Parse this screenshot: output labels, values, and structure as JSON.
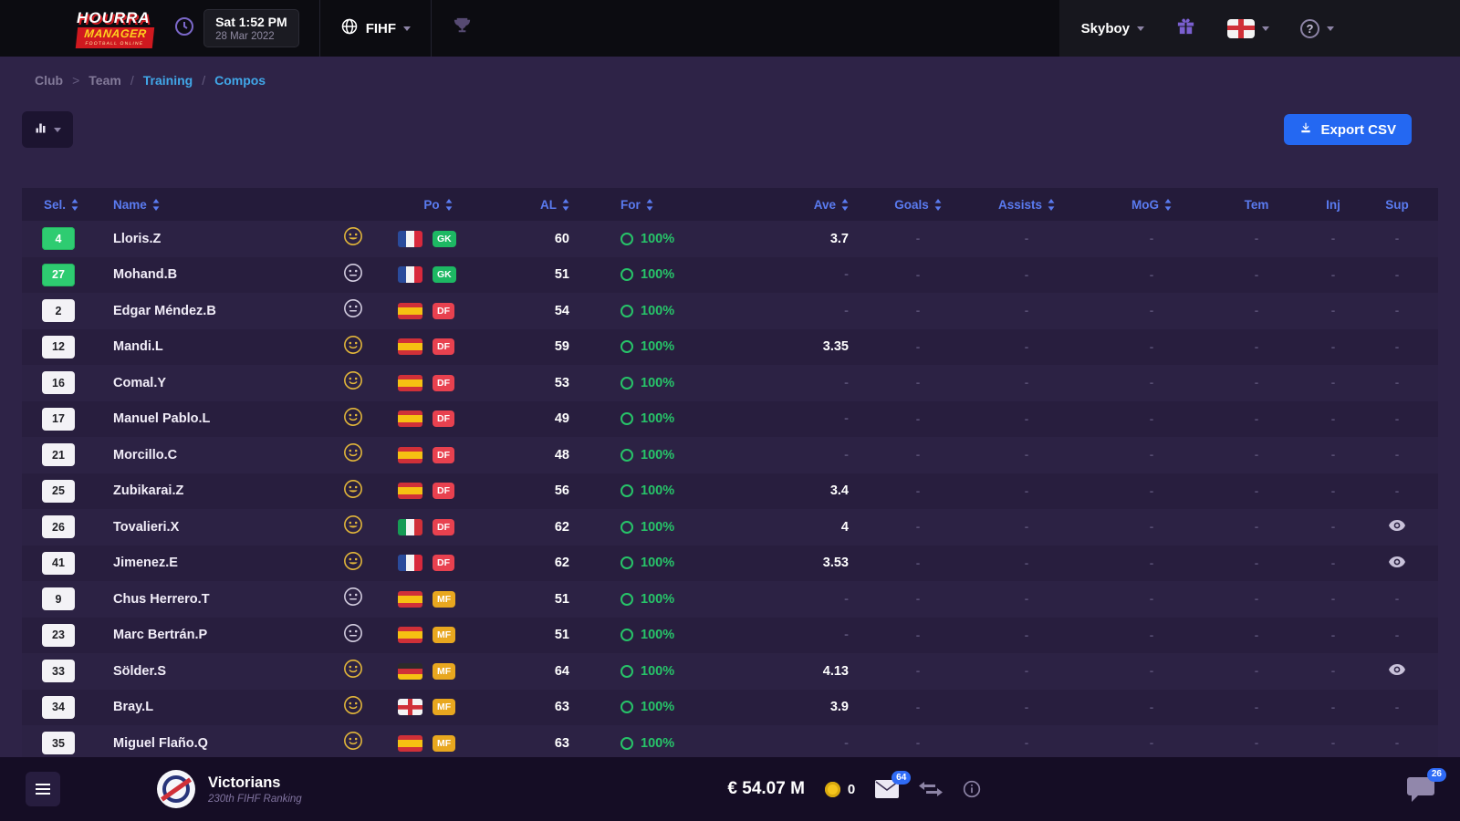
{
  "navbar": {
    "logo": {
      "line1": "HOURRA",
      "line2": "MANAGER",
      "sub": "FOOTBALL ONLINE"
    },
    "clock": {
      "time": "Sat 1:52 PM",
      "date": "28 Mar 2022"
    },
    "federation": "FIHF",
    "user": "Skyboy"
  },
  "breadcrumb": {
    "items": [
      {
        "label": "Club",
        "active": false,
        "sep": ">"
      },
      {
        "label": "Team",
        "active": false,
        "sep": "/"
      },
      {
        "label": "Training",
        "active": true,
        "sep": "/"
      },
      {
        "label": "Compos",
        "active": true,
        "sep": ""
      }
    ]
  },
  "toolbar": {
    "export_label": "Export CSV"
  },
  "table": {
    "headers": [
      {
        "key": "sel",
        "label": "Sel.",
        "sortable": true
      },
      {
        "key": "name",
        "label": "Name",
        "sortable": true
      },
      {
        "key": "morale",
        "label": "",
        "sortable": false
      },
      {
        "key": "po",
        "label": "Po",
        "sortable": true
      },
      {
        "key": "al",
        "label": "AL",
        "sortable": true
      },
      {
        "key": "for",
        "label": "For",
        "sortable": true
      },
      {
        "key": "ave",
        "label": "Ave",
        "sortable": true
      },
      {
        "key": "goals",
        "label": "Goals",
        "sortable": true
      },
      {
        "key": "assists",
        "label": "Assists",
        "sortable": true
      },
      {
        "key": "mog",
        "label": "MoG",
        "sortable": true
      },
      {
        "key": "tem",
        "label": "Tem",
        "sortable": false
      },
      {
        "key": "inj",
        "label": "Inj",
        "sortable": false
      },
      {
        "key": "sup",
        "label": "Sup",
        "sortable": false
      }
    ],
    "rows": [
      {
        "sel": "4",
        "selected": true,
        "name": "Lloris.Z",
        "morale": "grin",
        "country": "fr",
        "pos": "GK",
        "al": "60",
        "form": "100%",
        "ave": "3.7",
        "goals": "-",
        "assists": "-",
        "mog": "-",
        "tem": "-",
        "inj": "-",
        "sup": "-",
        "watched": false
      },
      {
        "sel": "27",
        "selected": true,
        "name": "Mohand.B",
        "morale": "neutral",
        "country": "fr",
        "pos": "GK",
        "al": "51",
        "form": "100%",
        "ave": "-",
        "goals": "-",
        "assists": "-",
        "mog": "-",
        "tem": "-",
        "inj": "-",
        "sup": "-",
        "watched": false
      },
      {
        "sel": "2",
        "selected": false,
        "name": "Edgar Méndez.B",
        "morale": "neutral",
        "country": "es",
        "pos": "DF",
        "al": "54",
        "form": "100%",
        "ave": "-",
        "goals": "-",
        "assists": "-",
        "mog": "-",
        "tem": "-",
        "inj": "-",
        "sup": "-",
        "watched": false
      },
      {
        "sel": "12",
        "selected": false,
        "name": "Mandi.L",
        "morale": "happy",
        "country": "es",
        "pos": "DF",
        "al": "59",
        "form": "100%",
        "ave": "3.35",
        "goals": "-",
        "assists": "-",
        "mog": "-",
        "tem": "-",
        "inj": "-",
        "sup": "-",
        "watched": false
      },
      {
        "sel": "16",
        "selected": false,
        "name": "Comal.Y",
        "morale": "happy",
        "country": "es",
        "pos": "DF",
        "al": "53",
        "form": "100%",
        "ave": "-",
        "goals": "-",
        "assists": "-",
        "mog": "-",
        "tem": "-",
        "inj": "-",
        "sup": "-",
        "watched": false
      },
      {
        "sel": "17",
        "selected": false,
        "name": "Manuel Pablo.L",
        "morale": "happy",
        "country": "es",
        "pos": "DF",
        "al": "49",
        "form": "100%",
        "ave": "-",
        "goals": "-",
        "assists": "-",
        "mog": "-",
        "tem": "-",
        "inj": "-",
        "sup": "-",
        "watched": false
      },
      {
        "sel": "21",
        "selected": false,
        "name": "Morcillo.C",
        "morale": "happy",
        "country": "es",
        "pos": "DF",
        "al": "48",
        "form": "100%",
        "ave": "-",
        "goals": "-",
        "assists": "-",
        "mog": "-",
        "tem": "-",
        "inj": "-",
        "sup": "-",
        "watched": false
      },
      {
        "sel": "25",
        "selected": false,
        "name": "Zubikarai.Z",
        "morale": "grin",
        "country": "es",
        "pos": "DF",
        "al": "56",
        "form": "100%",
        "ave": "3.4",
        "goals": "-",
        "assists": "-",
        "mog": "-",
        "tem": "-",
        "inj": "-",
        "sup": "-",
        "watched": false
      },
      {
        "sel": "26",
        "selected": false,
        "name": "Tovalieri.X",
        "morale": "grin",
        "country": "it",
        "pos": "DF",
        "al": "62",
        "form": "100%",
        "ave": "4",
        "goals": "-",
        "assists": "-",
        "mog": "-",
        "tem": "-",
        "inj": "-",
        "sup": "-",
        "watched": true
      },
      {
        "sel": "41",
        "selected": false,
        "name": "Jimenez.E",
        "morale": "grin",
        "country": "fr",
        "pos": "DF",
        "al": "62",
        "form": "100%",
        "ave": "3.53",
        "goals": "-",
        "assists": "-",
        "mog": "-",
        "tem": "-",
        "inj": "-",
        "sup": "-",
        "watched": true
      },
      {
        "sel": "9",
        "selected": false,
        "name": "Chus Herrero.T",
        "morale": "neutral",
        "country": "es",
        "pos": "MF",
        "al": "51",
        "form": "100%",
        "ave": "-",
        "goals": "-",
        "assists": "-",
        "mog": "-",
        "tem": "-",
        "inj": "-",
        "sup": "-",
        "watched": false
      },
      {
        "sel": "23",
        "selected": false,
        "name": "Marc Bertrán.P",
        "morale": "neutral",
        "country": "es",
        "pos": "MF",
        "al": "51",
        "form": "100%",
        "ave": "-",
        "goals": "-",
        "assists": "-",
        "mog": "-",
        "tem": "-",
        "inj": "-",
        "sup": "-",
        "watched": false
      },
      {
        "sel": "33",
        "selected": false,
        "name": "Sölder.S",
        "morale": "happy",
        "country": "de",
        "pos": "MF",
        "al": "64",
        "form": "100%",
        "ave": "4.13",
        "goals": "-",
        "assists": "-",
        "mog": "-",
        "tem": "-",
        "inj": "-",
        "sup": "-",
        "watched": true
      },
      {
        "sel": "34",
        "selected": false,
        "name": "Bray.L",
        "morale": "happy",
        "country": "en",
        "pos": "MF",
        "al": "63",
        "form": "100%",
        "ave": "3.9",
        "goals": "-",
        "assists": "-",
        "mog": "-",
        "tem": "-",
        "inj": "-",
        "sup": "-",
        "watched": false
      },
      {
        "sel": "35",
        "selected": false,
        "name": "Miguel Flaño.Q",
        "morale": "happy",
        "country": "es",
        "pos": "MF",
        "al": "63",
        "form": "100%",
        "ave": "-",
        "goals": "-",
        "assists": "-",
        "mog": "-",
        "tem": "-",
        "inj": "-",
        "sup": "-",
        "watched": false
      }
    ]
  },
  "bottombar": {
    "club_name": "Victorians",
    "club_ranking": "230th FIHF Ranking",
    "budget": "€ 54.07 M",
    "coins": "0",
    "mail_count": "64",
    "chat_count": "26"
  },
  "icons": {
    "export": "download-icon",
    "sort": "sort-arrows-icon",
    "form": "ring-icon",
    "watch": "eye-icon",
    "mail": "envelope-icon",
    "transfers": "swap-arrows-icon",
    "chat": "chat-bubble-icon",
    "menu": "hamburger-icon",
    "info": "info-icon",
    "coins": "coin-icon",
    "help": "question-icon",
    "gift": "gift-icon",
    "clock": "clock-icon",
    "federation": "globe-icon",
    "trophy": "trophy-icon"
  },
  "colors": {
    "accent_blue": "#2468f2",
    "link_blue": "#41a7e8",
    "header_blue": "#5a7bf0",
    "green": "#27c469",
    "sel_green": "#2ecc71",
    "gk": "#1db863",
    "df": "#e8414f",
    "mf": "#e8a71f"
  }
}
